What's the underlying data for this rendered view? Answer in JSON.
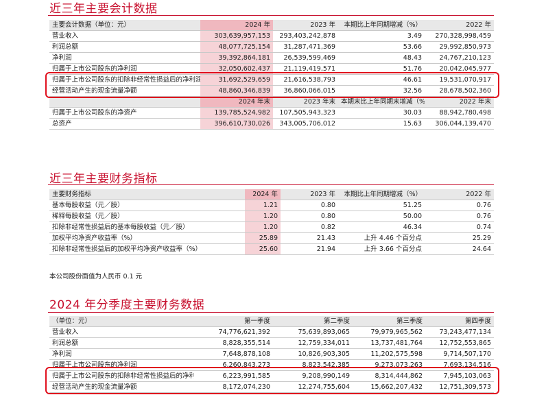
{
  "section1": {
    "title": "近三年主要会计数据",
    "header": [
      "主要会计数据（单位：元）",
      "2024 年",
      "2023 年",
      "本期比上年同期增减（%）",
      "2022 年"
    ],
    "rows": [
      [
        "营业收入",
        "303,639,957,153",
        "293,403,242,878",
        "3.49",
        "270,328,998,459"
      ],
      [
        "利润总额",
        "48,077,725,154",
        "31,287,471,369",
        "53.66",
        "29,992,850,973"
      ],
      [
        "净利润",
        "39,392,864,181",
        "26,539,599,469",
        "48.43",
        "24,767,210,123"
      ],
      [
        "归属于上市公司股东的净利润",
        "32,050,602,437",
        "21,119,419,571",
        "51.76",
        "20,042,045,977"
      ],
      [
        "归属于上市公司股东的扣除非经常性损益后的净利润",
        "31,692,529,659",
        "21,616,538,793",
        "46.61",
        "19,531,070,917"
      ],
      [
        "经营活动产生的现金流量净额",
        "48,860,346,839",
        "36,860,066,015",
        "32.56",
        "28,678,502,360"
      ]
    ],
    "header2": [
      "",
      "2024 年末",
      "2023 年末",
      "本期末比上年同期末增减（%）",
      "2022 年末"
    ],
    "rows2": [
      [
        "归属于上市公司股东的净资产",
        "139,785,524,982",
        "107,505,943,323",
        "30.03",
        "88,942,780,498"
      ],
      [
        "总资产",
        "396,610,730,026",
        "343,005,706,012",
        "15.63",
        "306,044,139,470"
      ]
    ]
  },
  "section2": {
    "title": "近三年主要财务指标",
    "header": [
      "主要财务指标",
      "2024 年",
      "2023 年",
      "本期比上年同期增减（%）",
      "2022 年"
    ],
    "rows": [
      [
        "基本每股收益（元／股）",
        "1.21",
        "0.80",
        "51.25",
        "0.76"
      ],
      [
        "稀释每股收益（元／股）",
        "1.20",
        "0.80",
        "50.00",
        "0.76"
      ],
      [
        "扣除非经常性损益后的基本每股收益（元／股）",
        "1.20",
        "0.82",
        "46.34",
        "0.74"
      ],
      [
        "加权平均净资产收益率（%）",
        "25.89",
        "21.43",
        "上升 4.46 个百分点",
        "25.29"
      ],
      [
        "扣除非经常性损益后的加权平均净资产收益率（%）",
        "25.60",
        "21.94",
        "上升 3.66 个百分点",
        "24.64"
      ]
    ],
    "note": "本公司股份面值为人民币 0.1 元"
  },
  "section3": {
    "title": "2024 年分季度主要财务数据",
    "header": [
      "（单位：元）",
      "第一季度",
      "第二季度",
      "第三季度",
      "第四季度"
    ],
    "rows": [
      [
        "营业收入",
        "74,776,621,392",
        "75,639,893,065",
        "79,979,965,562",
        "73,243,477,134"
      ],
      [
        "利润总额",
        "8,828,355,514",
        "12,759,334,011",
        "13,737,481,764",
        "12,752,553,865"
      ],
      [
        "净利润",
        "7,648,878,108",
        "10,826,903,305",
        "11,202,575,598",
        "9,714,507,170"
      ],
      [
        "归属于上市公司股东的净利润",
        "6,260,843,273",
        "8,823,542,385",
        "9,273,073,263",
        "7,693,134,516"
      ],
      [
        "归属于上市公司股东的扣除非经常性损益后的净利润",
        "6,223,991,585",
        "9,208,990,149",
        "8,314,444,862",
        "7,945,103,063"
      ],
      [
        "经营活动产生的现金流量净额",
        "8,172,074,230",
        "12,274,755,604",
        "15,662,207,432",
        "12,751,309,573"
      ]
    ]
  },
  "colors": {
    "accent": "#c8102e",
    "highlight": "#f6d3d7",
    "box": "#e0101e",
    "header_bg": "#e8e8e8"
  }
}
